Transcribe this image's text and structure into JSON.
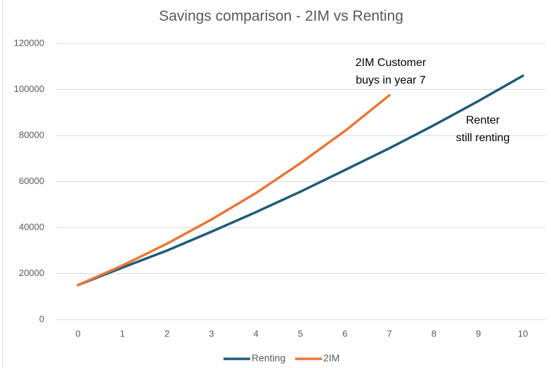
{
  "chart_data": {
    "type": "line",
    "title": "Savings comparison - 2IM vs Renting",
    "x": [
      0,
      1,
      2,
      3,
      4,
      5,
      6,
      7,
      8,
      9,
      10
    ],
    "xlim": [
      0,
      10
    ],
    "xticks": [
      0,
      1,
      2,
      3,
      4,
      5,
      6,
      7,
      8,
      9,
      10
    ],
    "ylim": [
      0,
      120000
    ],
    "yticks": [
      0,
      20000,
      40000,
      60000,
      80000,
      100000,
      120000
    ],
    "grid": true,
    "legend": "bottom",
    "series": [
      {
        "name": "Renting",
        "color": "#1e5b78",
        "values": [
          15000,
          22600,
          30000,
          38200,
          46700,
          55600,
          65000,
          74500,
          84500,
          95000,
          106000
        ]
      },
      {
        "name": "2IM",
        "color": "#e8763a",
        "values": [
          15000,
          23500,
          33000,
          43500,
          55000,
          68000,
          82000,
          97500,
          null,
          null,
          null
        ]
      }
    ],
    "annotations": [
      {
        "lines": [
          "2IM Customer",
          "buys in year 7"
        ]
      },
      {
        "lines": [
          "Renter",
          "still renting"
        ]
      }
    ]
  }
}
